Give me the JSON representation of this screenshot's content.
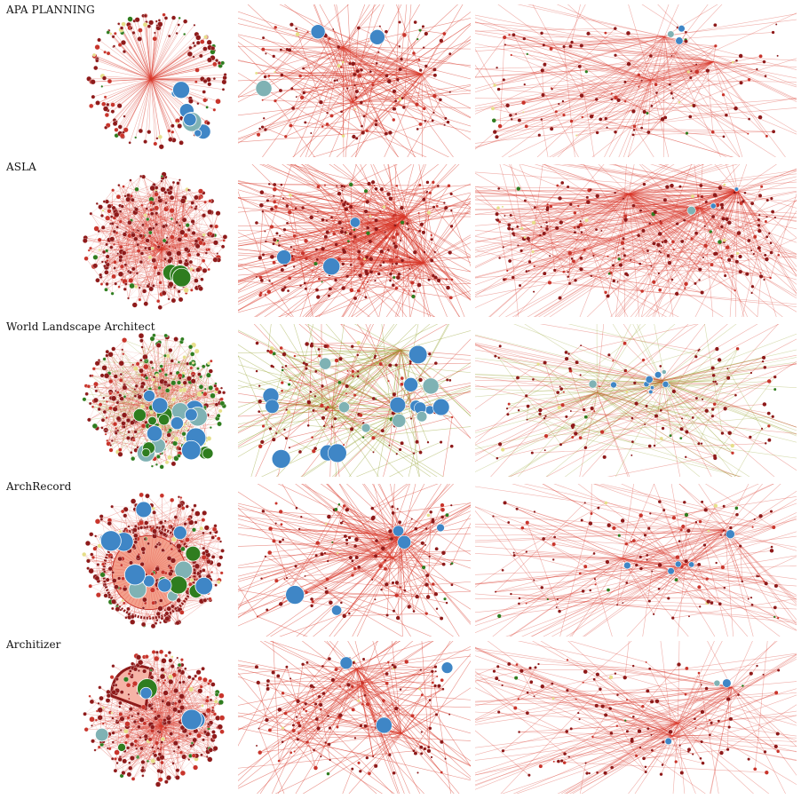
{
  "rows": [
    {
      "label": "APA PLANNING"
    },
    {
      "label": "ASLA"
    },
    {
      "label": "World Landscape Architect"
    },
    {
      "label": "ArchRecord"
    },
    {
      "label": "Architizer"
    }
  ],
  "colors": {
    "edge_red": "#d9382a",
    "edge_olive": "#9aa83a",
    "node_dark_red": "#8e1a1a",
    "node_red": "#c8342b",
    "node_green": "#2f7d1f",
    "node_blue": "#3f86c6",
    "node_teal": "#7fb2b4",
    "node_yellow": "#e6df8a",
    "stroke": "#ffffff"
  }
}
